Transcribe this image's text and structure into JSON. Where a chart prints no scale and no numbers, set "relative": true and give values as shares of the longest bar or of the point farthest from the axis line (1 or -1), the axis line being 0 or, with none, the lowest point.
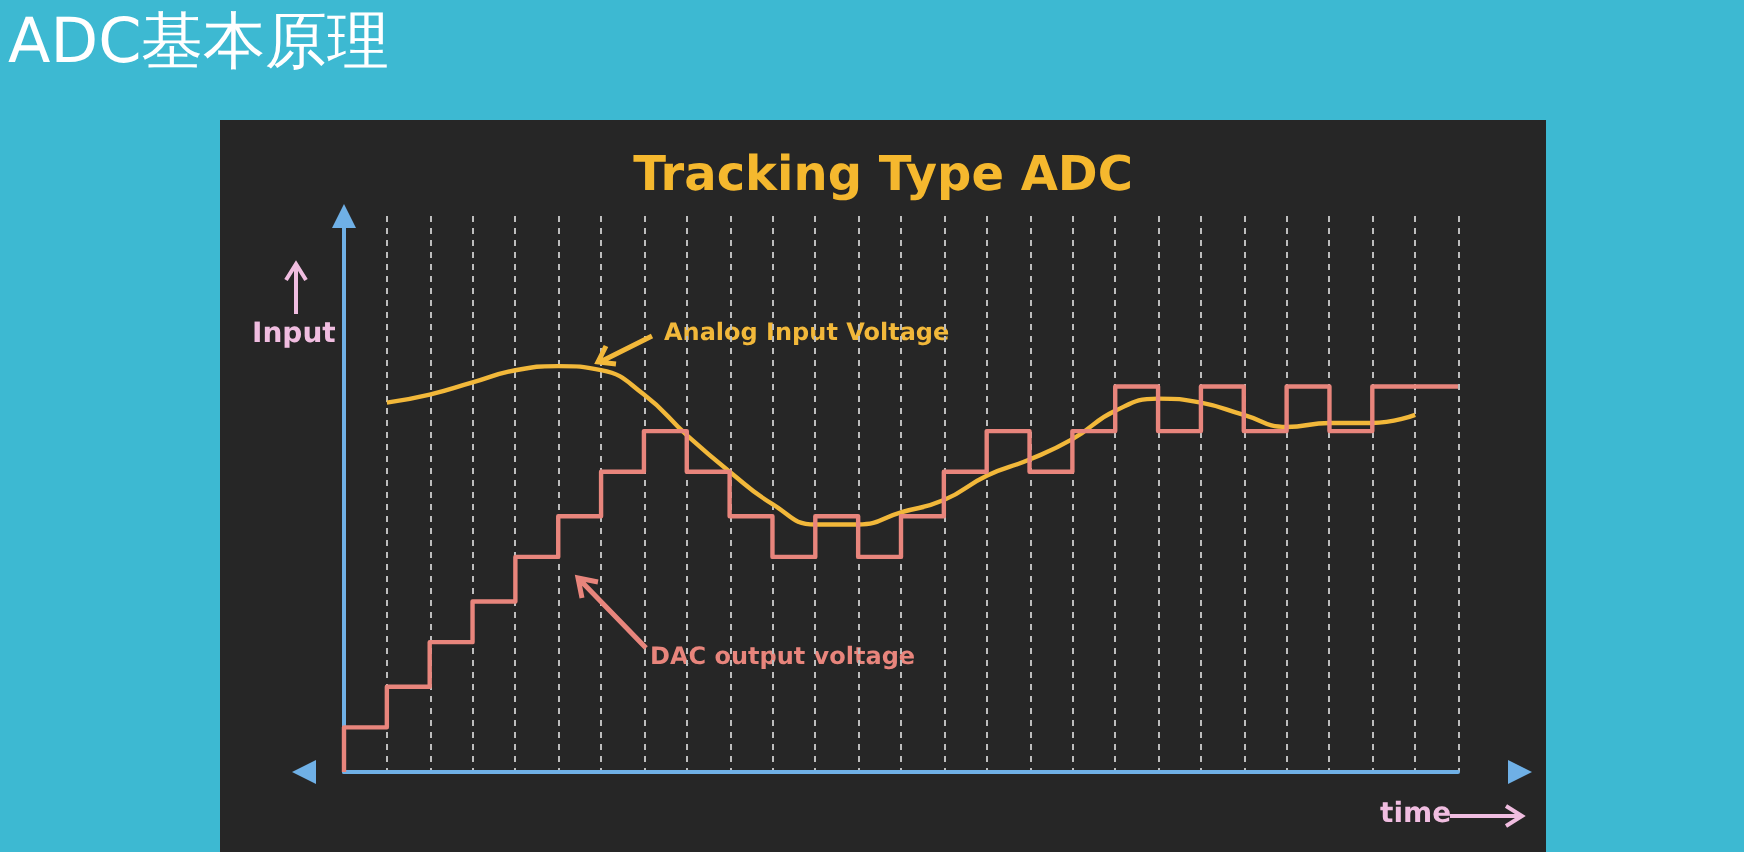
{
  "chart_data": {
    "type": "step",
    "title": "ADC基本原理",
    "subtitle": "Tracking Type ADC",
    "xlabel": "time",
    "ylabel": "Input",
    "annotations": [
      "Analog Input Voltage",
      "DAC output voltage"
    ],
    "relative": true,
    "grid": "x",
    "marker": "none",
    "categories": [
      null,
      null,
      null,
      null,
      null,
      null,
      null,
      null,
      null,
      null,
      null,
      null,
      null,
      null,
      null,
      null,
      null,
      null,
      null,
      null,
      null,
      null,
      null,
      null,
      null,
      null,
      null
    ],
    "series": [
      {
        "type": "line",
        "color": "#f2b83a",
        "values": [
          null,
          0.91,
          0.93,
          0.96,
          0.99,
          1,
          0.99,
          0.93,
          0.83,
          0.74,
          0.66,
          0.61,
          0.61,
          0.64,
          0.67,
          0.73,
          0.77,
          0.82,
          0.89,
          0.92,
          0.91,
          0.88,
          0.85,
          0.86,
          0.86,
          0.88,
          null
        ]
      },
      {
        "type": "step",
        "color": "#e8857c",
        "values": [
          0,
          0.11,
          0.21,
          0.32,
          0.42,
          0.53,
          0.63,
          0.74,
          0.84,
          0.74,
          0.63,
          0.53,
          0.63,
          0.53,
          0.63,
          0.74,
          0.84,
          0.74,
          0.84,
          0.95,
          0.84,
          0.95,
          0.84,
          0.95,
          0.84,
          0.95,
          0.95
        ]
      }
    ]
  }
}
